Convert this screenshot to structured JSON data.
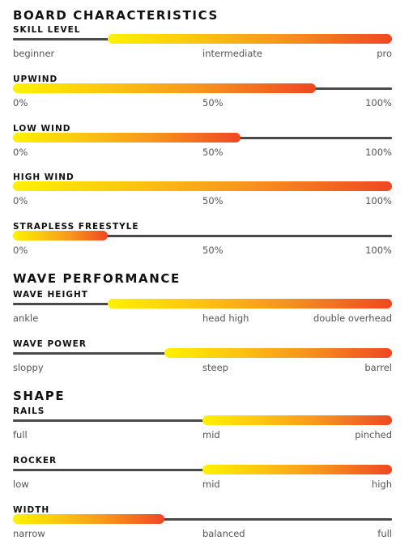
{
  "sections": [
    {
      "title": "BOARD CHARACTERISTICS",
      "rows": [
        {
          "label": "SKILL LEVEL",
          "from": 0.25,
          "to": 1.0,
          "ticks": [
            "beginner",
            "intermediate",
            "pro"
          ]
        },
        {
          "label": "UPWIND",
          "from": 0.0,
          "to": 0.8,
          "ticks": [
            "0%",
            "50%",
            "100%"
          ]
        },
        {
          "label": "LOW WIND",
          "from": 0.0,
          "to": 0.6,
          "ticks": [
            "0%",
            "50%",
            "100%"
          ]
        },
        {
          "label": "HIGH WIND",
          "from": 0.0,
          "to": 1.0,
          "ticks": [
            "0%",
            "50%",
            "100%"
          ]
        },
        {
          "label": "STRAPLESS FREESTYLE",
          "from": 0.0,
          "to": 0.25,
          "ticks": [
            "0%",
            "50%",
            "100%"
          ]
        }
      ]
    },
    {
      "title": "WAVE PERFORMANCE",
      "rows": [
        {
          "label": "WAVE HEIGHT",
          "from": 0.25,
          "to": 1.0,
          "ticks": [
            "ankle",
            "head high",
            "double overhead"
          ]
        },
        {
          "label": "WAVE POWER",
          "from": 0.4,
          "to": 1.0,
          "ticks": [
            "sloppy",
            "steep",
            "barrel"
          ]
        }
      ]
    },
    {
      "title": "SHAPE",
      "rows": [
        {
          "label": "RAILS",
          "from": 0.5,
          "to": 1.0,
          "ticks": [
            "full",
            "mid",
            "pinched"
          ]
        },
        {
          "label": "ROCKER",
          "from": 0.5,
          "to": 1.0,
          "ticks": [
            "low",
            "mid",
            "high"
          ]
        },
        {
          "label": "WIDTH",
          "from": 0.0,
          "to": 0.4,
          "ticks": [
            "narrow",
            "balanced",
            "full"
          ]
        }
      ]
    }
  ],
  "colors": {
    "track": "#4a4a4a",
    "gradient_start": "#fff200",
    "gradient_end": "#ef4723"
  }
}
